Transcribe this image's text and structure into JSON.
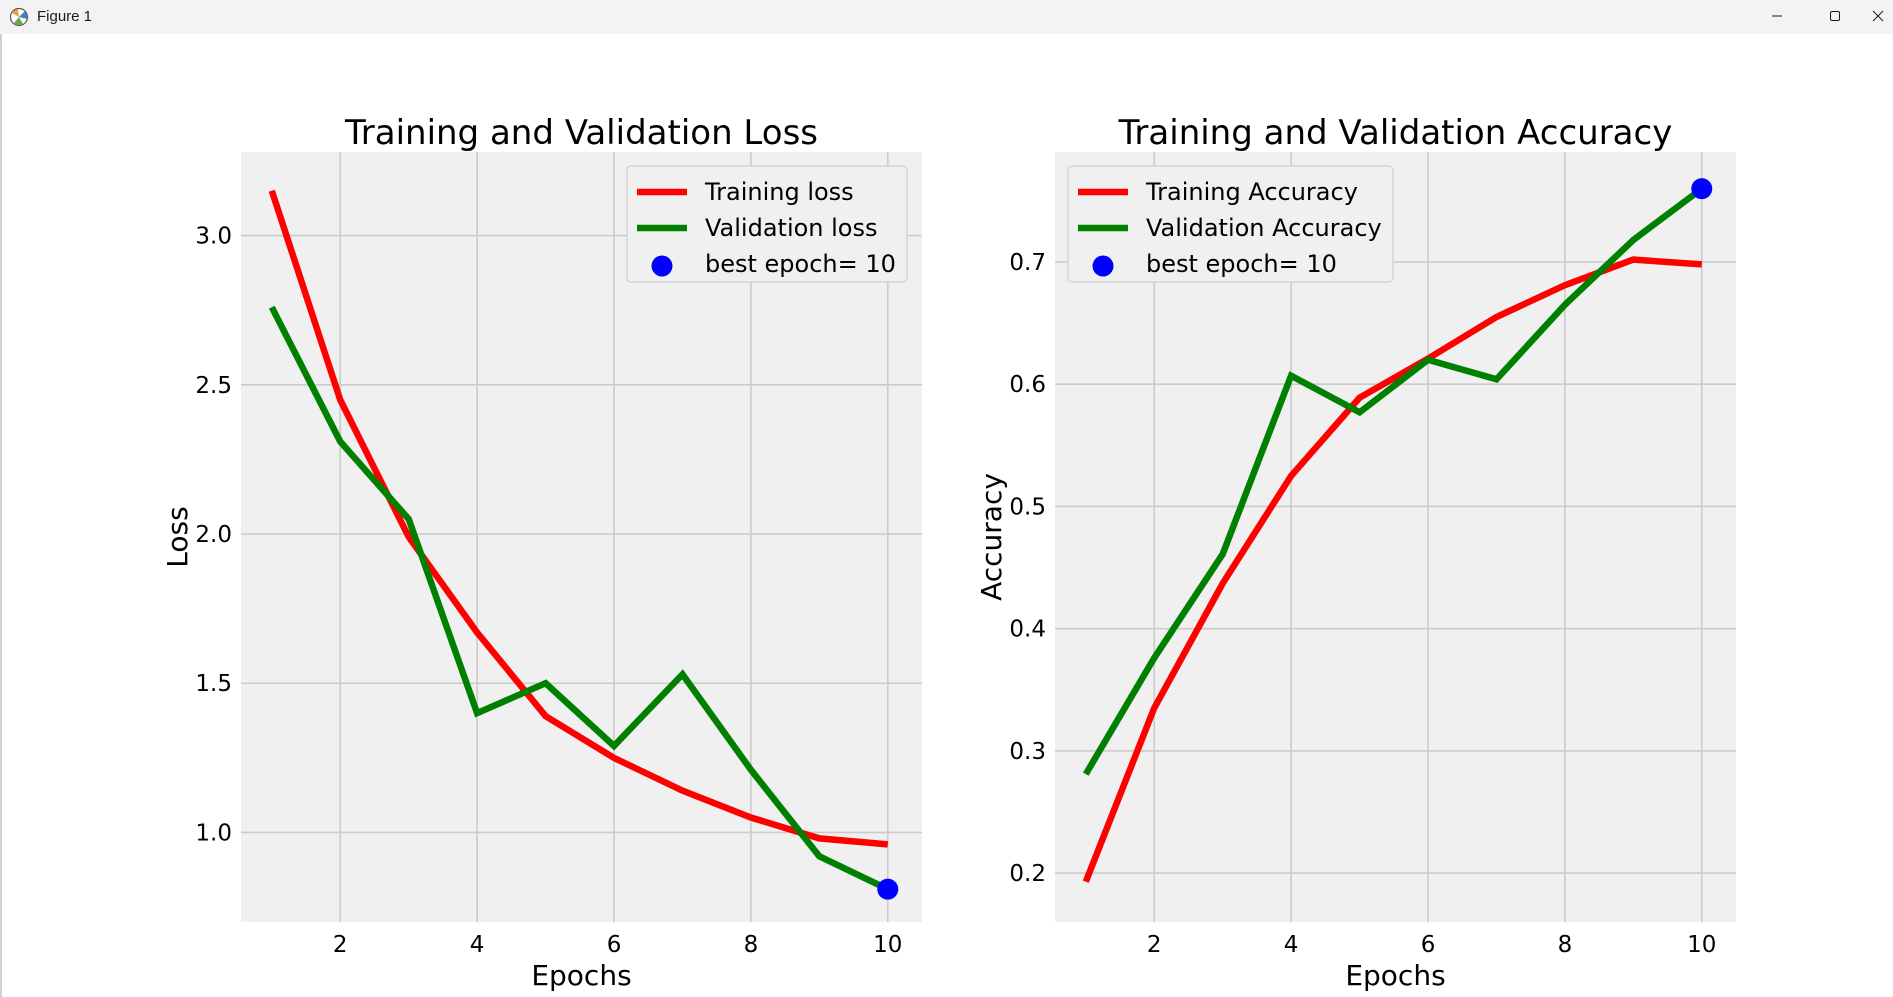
{
  "window": {
    "title": "Figure 1",
    "icon": "matplotlib-figure-icon",
    "controls": [
      "minimize-icon",
      "maximize-icon",
      "close-icon"
    ]
  },
  "colors": {
    "axes_bg": "#f0f0f0",
    "grid": "#cbcbcb",
    "training": "#ff0000",
    "validation": "#008000",
    "best": "#0000ff",
    "text": "#000000"
  },
  "chart_data": [
    {
      "type": "line",
      "title": "Training and Validation Loss",
      "xlabel": "Epochs",
      "ylabel": "Loss",
      "xlim": [
        0.55,
        10.5
      ],
      "ylim": [
        0.7,
        3.28
      ],
      "xticks": [
        2,
        4,
        6,
        8,
        10
      ],
      "yticks": [
        1.0,
        1.5,
        2.0,
        2.5,
        3.0
      ],
      "ytick_labels": [
        "1.0",
        "1.5",
        "2.0",
        "2.5",
        "3.0"
      ],
      "grid": true,
      "legend_position": "top-right",
      "x": [
        1,
        2,
        3,
        4,
        5,
        6,
        7,
        8,
        9,
        10
      ],
      "series": [
        {
          "name": "Training loss",
          "color": "#ff0000",
          "values": [
            3.15,
            2.45,
            1.99,
            1.67,
            1.39,
            1.25,
            1.14,
            1.05,
            0.98,
            0.96
          ]
        },
        {
          "name": "Validation loss",
          "color": "#008000",
          "values": [
            2.76,
            2.31,
            2.05,
            1.4,
            1.5,
            1.29,
            1.53,
            1.21,
            0.92,
            0.81
          ]
        }
      ],
      "best_point": {
        "name": "best epoch= 10",
        "x": 10,
        "y": 0.81,
        "color": "#0000ff"
      }
    },
    {
      "type": "line",
      "title": "Training and Validation Accuracy",
      "xlabel": "Epochs",
      "ylabel": "Accuracy",
      "xlim": [
        0.55,
        10.5
      ],
      "ylim": [
        0.16,
        0.79
      ],
      "xticks": [
        2,
        4,
        6,
        8,
        10
      ],
      "yticks": [
        0.2,
        0.3,
        0.4,
        0.5,
        0.6,
        0.7
      ],
      "ytick_labels": [
        "0.2",
        "0.3",
        "0.4",
        "0.5",
        "0.6",
        "0.7"
      ],
      "grid": true,
      "legend_position": "top-left",
      "x": [
        1,
        2,
        3,
        4,
        5,
        6,
        7,
        8,
        9,
        10
      ],
      "series": [
        {
          "name": "Training Accuracy",
          "color": "#ff0000",
          "values": [
            0.193,
            0.335,
            0.437,
            0.525,
            0.589,
            0.621,
            0.655,
            0.681,
            0.702,
            0.698
          ]
        },
        {
          "name": "Validation Accuracy",
          "color": "#008000",
          "values": [
            0.281,
            0.376,
            0.461,
            0.607,
            0.577,
            0.62,
            0.604,
            0.665,
            0.718,
            0.76
          ]
        }
      ],
      "best_point": {
        "name": "best epoch= 10",
        "x": 10,
        "y": 0.76,
        "color": "#0000ff"
      }
    }
  ]
}
